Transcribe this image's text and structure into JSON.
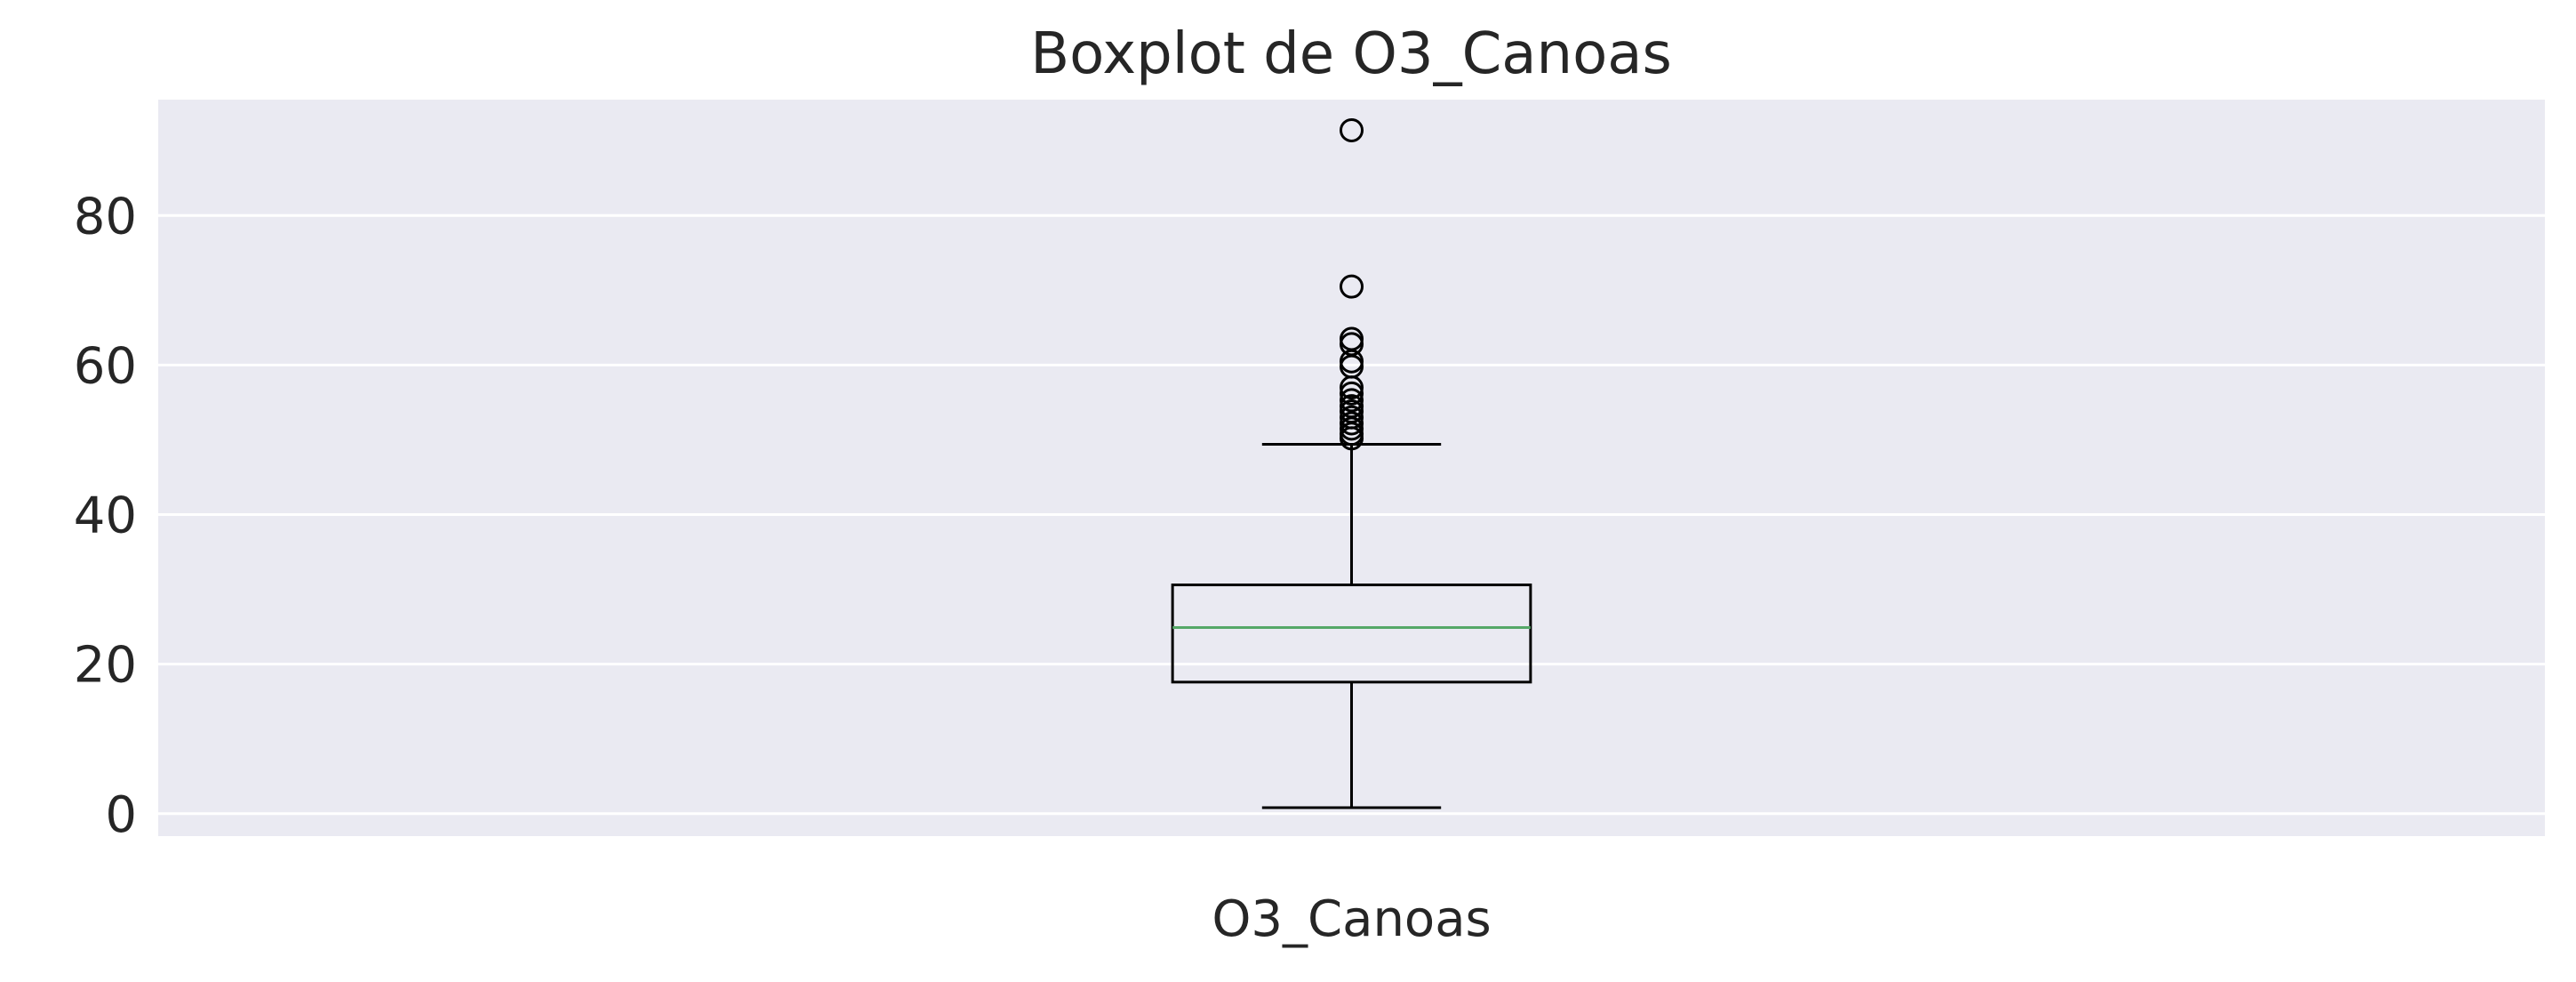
{
  "chart_data": {
    "type": "boxplot",
    "title": "Boxplot de O3_Canoas",
    "categories": [
      "O3_Canoas"
    ],
    "ylim": [
      -3,
      95.5
    ],
    "yticks": [
      0,
      20,
      40,
      60,
      80
    ],
    "grid": true,
    "series": [
      {
        "category": "O3_Canoas",
        "whisker_low": 0.8,
        "q1": 17.6,
        "median": 24.9,
        "q3": 30.6,
        "whisker_high": 49.4,
        "outliers": [
          50.2,
          50.8,
          51.5,
          52.2,
          53.0,
          53.8,
          54.5,
          55.3,
          56.2,
          57.0,
          59.8,
          60.5,
          62.8,
          63.5,
          70.5,
          91.4
        ]
      }
    ],
    "colors": {
      "plot_background": "#eaeaf2",
      "grid": "#ffffff",
      "box": "#000000",
      "median": "#55a868",
      "text": "#262626"
    }
  }
}
